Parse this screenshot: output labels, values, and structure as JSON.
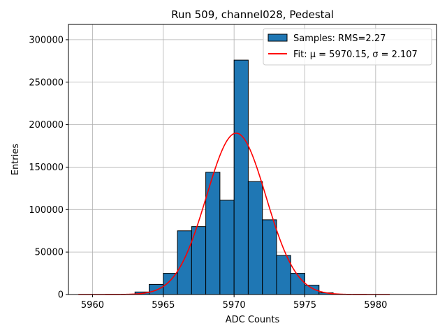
{
  "chart_data": {
    "type": "bar",
    "title": "Run 509, channel028, Pedestal",
    "xlabel": "ADC Counts",
    "ylabel": "Entries",
    "xlim": [
      5958.3,
      5984.3
    ],
    "ylim": [
      0,
      318000
    ],
    "xticks": [
      5960,
      5965,
      5970,
      5975,
      5980
    ],
    "yticks": [
      0,
      50000,
      100000,
      150000,
      200000,
      250000,
      300000
    ],
    "grid": true,
    "legend_position": "top-right",
    "bin_width": 1,
    "bins": [
      5959,
      5960,
      5961,
      5962,
      5963,
      5964,
      5965,
      5966,
      5967,
      5968,
      5969,
      5970,
      5971,
      5972,
      5973,
      5974,
      5975,
      5976,
      5977,
      5978,
      5979,
      5980,
      5981,
      5982
    ],
    "series": [
      {
        "name": "Samples: RMS=2.27",
        "kind": "histogram",
        "color": "#1f77b4",
        "edgecolor": "#000000",
        "values": [
          0,
          0,
          0,
          0,
          3000,
          12000,
          25000,
          75000,
          80000,
          144000,
          111000,
          276000,
          133000,
          88000,
          46000,
          25000,
          11000,
          2000,
          0,
          0,
          0,
          0,
          0,
          0
        ]
      },
      {
        "name": "Fit: μ = 5970.15, σ = 2.107",
        "kind": "gaussian-fit",
        "color": "#ff0000",
        "mu": 5970.15,
        "sigma": 2.107,
        "amplitude": 190000,
        "x_range": [
          5959,
          5981
        ]
      }
    ]
  }
}
